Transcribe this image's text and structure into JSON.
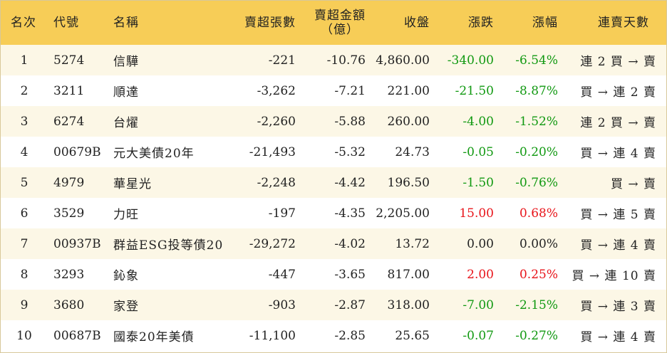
{
  "columns": {
    "rank": "名次",
    "code": "代號",
    "name": "名稱",
    "oversold_shares": "賣超張數",
    "oversold_amount_line1": "賣超金額",
    "oversold_amount_line2": "（億）",
    "close": "收盤",
    "change": "漲跌",
    "change_pct": "漲幅",
    "consecutive_days": "連賣天數"
  },
  "colors": {
    "header_bg": "#f7cd57",
    "odd_row_bg": "#fcf7e6",
    "up": "#e8141a",
    "down": "#119911",
    "flat": "#222222"
  },
  "rows": [
    {
      "rank": "1",
      "code": "5274",
      "name": "信驊",
      "shares": "-221",
      "amount": "-10.76",
      "close": "4,860.00",
      "change": "-340.00",
      "pct": "-6.54%",
      "trend": "down",
      "days": "連 2 買 → 賣"
    },
    {
      "rank": "2",
      "code": "3211",
      "name": "順達",
      "shares": "-3,262",
      "amount": "-7.21",
      "close": "221.00",
      "change": "-21.50",
      "pct": "-8.87%",
      "trend": "down",
      "days": "買 → 連 2 賣"
    },
    {
      "rank": "3",
      "code": "6274",
      "name": "台燿",
      "shares": "-2,260",
      "amount": "-5.88",
      "close": "260.00",
      "change": "-4.00",
      "pct": "-1.52%",
      "trend": "down",
      "days": "連 2 買 → 賣"
    },
    {
      "rank": "4",
      "code": "00679B",
      "name": "元大美債20年",
      "shares": "-21,493",
      "amount": "-5.32",
      "close": "24.73",
      "change": "-0.05",
      "pct": "-0.20%",
      "trend": "down",
      "days": "買 → 連 4 賣"
    },
    {
      "rank": "5",
      "code": "4979",
      "name": "華星光",
      "shares": "-2,248",
      "amount": "-4.42",
      "close": "196.50",
      "change": "-1.50",
      "pct": "-0.76%",
      "trend": "down",
      "days": "買 → 賣"
    },
    {
      "rank": "6",
      "code": "3529",
      "name": "力旺",
      "shares": "-197",
      "amount": "-4.35",
      "close": "2,205.00",
      "change": "15.00",
      "pct": "0.68%",
      "trend": "up",
      "days": "買 → 連 5 賣"
    },
    {
      "rank": "7",
      "code": "00937B",
      "name": "群益ESG投等債20",
      "shares": "-29,272",
      "amount": "-4.02",
      "close": "13.72",
      "change": "0.00",
      "pct": "0.00%",
      "trend": "flat",
      "days": "買 → 連 4 賣"
    },
    {
      "rank": "8",
      "code": "3293",
      "name": "鈊象",
      "shares": "-447",
      "amount": "-3.65",
      "close": "817.00",
      "change": "2.00",
      "pct": "0.25%",
      "trend": "up",
      "days": "買 → 連 10 賣"
    },
    {
      "rank": "9",
      "code": "3680",
      "name": "家登",
      "shares": "-903",
      "amount": "-2.87",
      "close": "318.00",
      "change": "-7.00",
      "pct": "-2.15%",
      "trend": "down",
      "days": "買 → 連 3 賣"
    },
    {
      "rank": "10",
      "code": "00687B",
      "name": "國泰20年美債",
      "shares": "-11,100",
      "amount": "-2.85",
      "close": "25.65",
      "change": "-0.07",
      "pct": "-0.27%",
      "trend": "down",
      "days": "買 → 連 4 賣"
    }
  ]
}
